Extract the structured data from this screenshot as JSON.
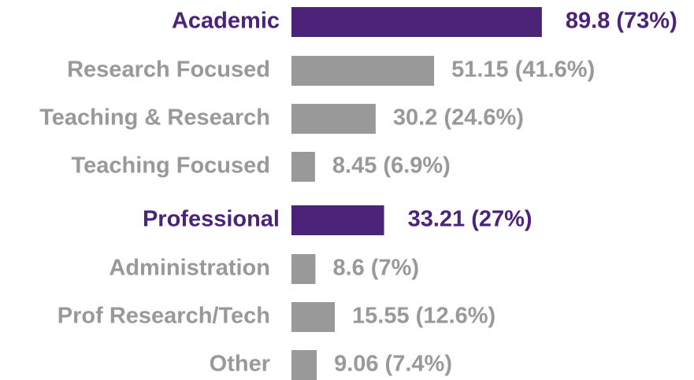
{
  "chart_data": {
    "type": "hbar",
    "categories": [
      "Academic",
      "Research Focused",
      "Teaching & Research",
      "Teaching Focused",
      "Professional",
      "Administration",
      "Prof Research/Tech",
      "Other"
    ],
    "values": [
      89.8,
      51.15,
      30.2,
      8.45,
      33.21,
      8.6,
      15.55,
      9.06
    ],
    "value_labels": [
      "89.8 (73%)",
      "51.15 (41.6%)",
      "30.2 (24.6%)",
      "8.45 (6.9%)",
      "33.21 (27%)",
      "8.6 (7%)",
      "15.55 (12.6%)",
      "9.06 (7.4%)"
    ],
    "colors": [
      "#4b2479",
      "#999999",
      "#999999",
      "#999999",
      "#4b2479",
      "#999999",
      "#999999",
      "#999999"
    ]
  }
}
